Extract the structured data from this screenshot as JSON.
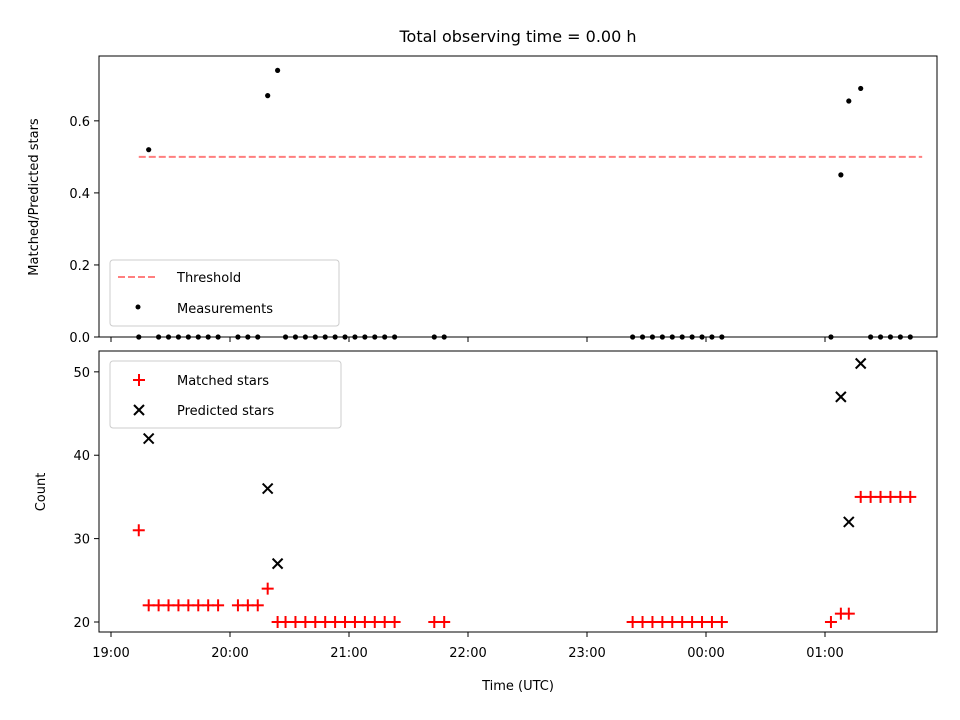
{
  "chart_data": [
    {
      "type": "scatter",
      "title": "Total observing time = 0.00 h",
      "xlabel": "",
      "ylabel": "Matched/Predicted stars",
      "ylim": [
        0,
        0.78
      ],
      "yticks": [
        "0.0",
        "0.2",
        "0.4",
        "0.6"
      ],
      "ytick_values": [
        0.0,
        0.2,
        0.4,
        0.6
      ],
      "legend_position": "lower-left",
      "series": [
        {
          "name": "Threshold",
          "kind": "line",
          "style": "dashed",
          "color": "#ff7f7f",
          "x": [
            "19:14",
            "01:49"
          ],
          "y": [
            0.5,
            0.5
          ]
        },
        {
          "name": "Measurements",
          "kind": "dot",
          "color": "#000000",
          "x": [
            "19:14",
            "19:19",
            "19:24",
            "19:29",
            "19:34",
            "19:39",
            "19:44",
            "19:49",
            "19:54",
            "20:04",
            "20:09",
            "20:14",
            "20:19",
            "20:24",
            "20:28",
            "20:33",
            "20:38",
            "20:43",
            "20:48",
            "20:53",
            "20:58",
            "21:03",
            "21:08",
            "21:13",
            "21:18",
            "21:23",
            "21:43",
            "21:48",
            "23:23",
            "23:28",
            "23:33",
            "23:38",
            "23:43",
            "23:48",
            "23:53",
            "23:58",
            "00:03",
            "00:08",
            "01:03",
            "01:08",
            "01:12",
            "01:18",
            "01:23",
            "01:28",
            "01:33",
            "01:38",
            "01:43"
          ],
          "y": [
            0,
            0.52,
            0,
            0,
            0,
            0,
            0,
            0,
            0,
            0,
            0,
            0,
            0.67,
            0.74,
            0,
            0,
            0,
            0,
            0,
            0,
            0,
            0,
            0,
            0,
            0,
            0,
            0,
            0,
            0,
            0,
            0,
            0,
            0,
            0,
            0,
            0,
            0,
            0,
            0,
            0.45,
            0.655,
            0.69,
            0,
            0,
            0,
            0,
            0
          ]
        }
      ],
      "grid": false
    },
    {
      "type": "scatter",
      "title": "",
      "xlabel": "Time (UTC)",
      "ylabel": "Count",
      "ylim": [
        18.8,
        52.5
      ],
      "yticks": [
        "20",
        "30",
        "40",
        "50"
      ],
      "ytick_values": [
        20,
        30,
        40,
        50
      ],
      "xticks": [
        "19:00",
        "20:00",
        "21:00",
        "22:00",
        "23:00",
        "00:00",
        "01:00"
      ],
      "legend_position": "upper-left",
      "series": [
        {
          "name": "Matched stars",
          "marker": "+",
          "color": "#ff0000",
          "x": [
            "19:14",
            "19:19",
            "19:24",
            "19:29",
            "19:34",
            "19:39",
            "19:44",
            "19:49",
            "19:54",
            "20:04",
            "20:09",
            "20:14",
            "20:19",
            "20:24",
            "20:28",
            "20:33",
            "20:38",
            "20:43",
            "20:48",
            "20:53",
            "20:58",
            "21:03",
            "21:08",
            "21:13",
            "21:18",
            "21:23",
            "21:43",
            "21:48",
            "23:23",
            "23:28",
            "23:33",
            "23:38",
            "23:43",
            "23:48",
            "23:53",
            "23:58",
            "00:03",
            "00:08",
            "01:03",
            "01:08",
            "01:12",
            "01:18",
            "01:23",
            "01:28",
            "01:33",
            "01:38",
            "01:43"
          ],
          "y": [
            31,
            22,
            22,
            22,
            22,
            22,
            22,
            22,
            22,
            22,
            22,
            22,
            24,
            20,
            20,
            20,
            20,
            20,
            20,
            20,
            20,
            20,
            20,
            20,
            20,
            20,
            20,
            20,
            20,
            20,
            20,
            20,
            20,
            20,
            20,
            20,
            20,
            20,
            20,
            21,
            21,
            35,
            35,
            35,
            35,
            35,
            35
          ]
        },
        {
          "name": "Predicted stars",
          "marker": "x",
          "color": "#000000",
          "x": [
            "19:19",
            "20:19",
            "20:24",
            "01:08",
            "01:12",
            "01:18"
          ],
          "y": [
            42,
            36,
            27,
            47,
            32,
            51
          ]
        }
      ],
      "grid": false
    }
  ]
}
